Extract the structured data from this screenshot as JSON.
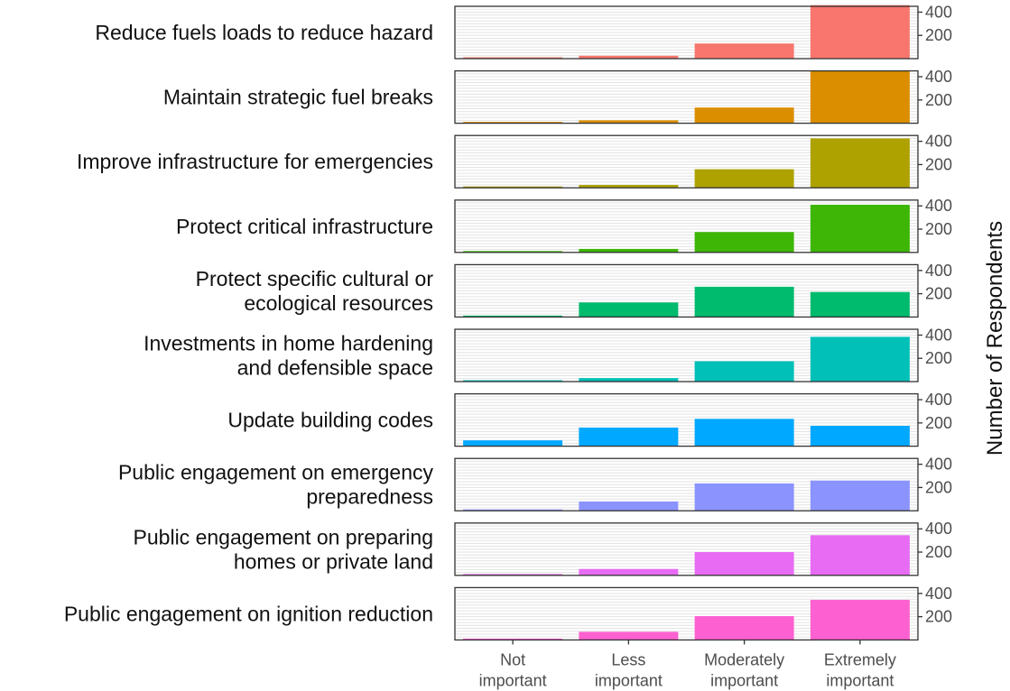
{
  "chart_data": {
    "type": "bar",
    "layout": "faceted rows (one panel per strategy), shared x categories, y axis on right",
    "ylabel": "Number of Respondents",
    "ylim": [
      0,
      450
    ],
    "yticks": [
      200,
      400
    ],
    "grid": true,
    "categories": [
      [
        "Not",
        "important"
      ],
      [
        "Less",
        "important"
      ],
      [
        "Moderately",
        "important"
      ],
      [
        "Extremely",
        "important"
      ]
    ],
    "series": [
      {
        "label_lines": [
          "Reduce fuels loads to reduce hazard"
        ],
        "color": "#f8766d",
        "values": [
          5,
          25,
          130,
          460
        ]
      },
      {
        "label_lines": [
          "Maintain strategic fuel breaks"
        ],
        "color": "#db8e00",
        "values": [
          3,
          25,
          135,
          450
        ]
      },
      {
        "label_lines": [
          "Improve infrastructure for emergencies"
        ],
        "color": "#aea200",
        "values": [
          4,
          25,
          160,
          425
        ]
      },
      {
        "label_lines": [
          "Protect critical infrastructure"
        ],
        "color": "#3db606",
        "values": [
          5,
          30,
          175,
          410
        ]
      },
      {
        "label_lines": [
          "Protect specific cultural or",
          "ecological resources"
        ],
        "color": "#00bb6e",
        "values": [
          12,
          125,
          260,
          215
        ]
      },
      {
        "label_lines": [
          "Investments in home hardening",
          "and defensible space"
        ],
        "color": "#00c0b8",
        "values": [
          5,
          30,
          175,
          385
        ]
      },
      {
        "label_lines": [
          "Update building codes"
        ],
        "color": "#00a8ff",
        "values": [
          50,
          160,
          235,
          175
        ]
      },
      {
        "label_lines": [
          "Public engagement on emergency",
          "preparedness"
        ],
        "color": "#8b93ff",
        "values": [
          8,
          80,
          235,
          260
        ]
      },
      {
        "label_lines": [
          "Public engagement on preparing",
          "homes or private land"
        ],
        "color": "#e76bf3",
        "values": [
          5,
          55,
          200,
          345
        ]
      },
      {
        "label_lines": [
          "Public engagement on ignition reduction"
        ],
        "color": "#fd61d1",
        "values": [
          5,
          70,
          205,
          345
        ]
      }
    ]
  }
}
